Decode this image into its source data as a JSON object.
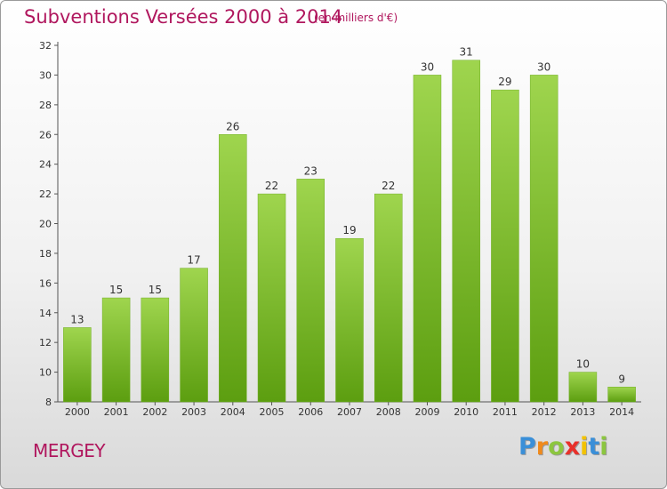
{
  "chart_data": {
    "type": "bar",
    "title": "Subventions Versées 2000 à 2014",
    "subtitle": "(en milliers d'€)",
    "categories": [
      "2000",
      "2001",
      "2002",
      "2003",
      "2004",
      "2005",
      "2006",
      "2007",
      "2008",
      "2009",
      "2010",
      "2011",
      "2012",
      "2013",
      "2014"
    ],
    "values": [
      13,
      15,
      15,
      17,
      26,
      22,
      23,
      19,
      22,
      30,
      31,
      29,
      30,
      10,
      9
    ],
    "ylim": [
      8,
      32
    ],
    "yticks": [
      8,
      10,
      12,
      14,
      16,
      18,
      20,
      22,
      24,
      26,
      28,
      30,
      32
    ],
    "grid": false,
    "colors": {
      "bar_top": "#9fd54e",
      "bar_bottom": "#5c9e10",
      "title": "#b0175e"
    }
  },
  "footer": {
    "commune": "MERGEY",
    "logo": {
      "letters": [
        "P",
        "r",
        "o",
        "x",
        "i",
        "t",
        "i"
      ],
      "colors": [
        "#3a8fd8",
        "#f08a1c",
        "#8cc63f",
        "#e8302a",
        "#f2c200",
        "#3a8fd8",
        "#8cc63f"
      ]
    }
  }
}
